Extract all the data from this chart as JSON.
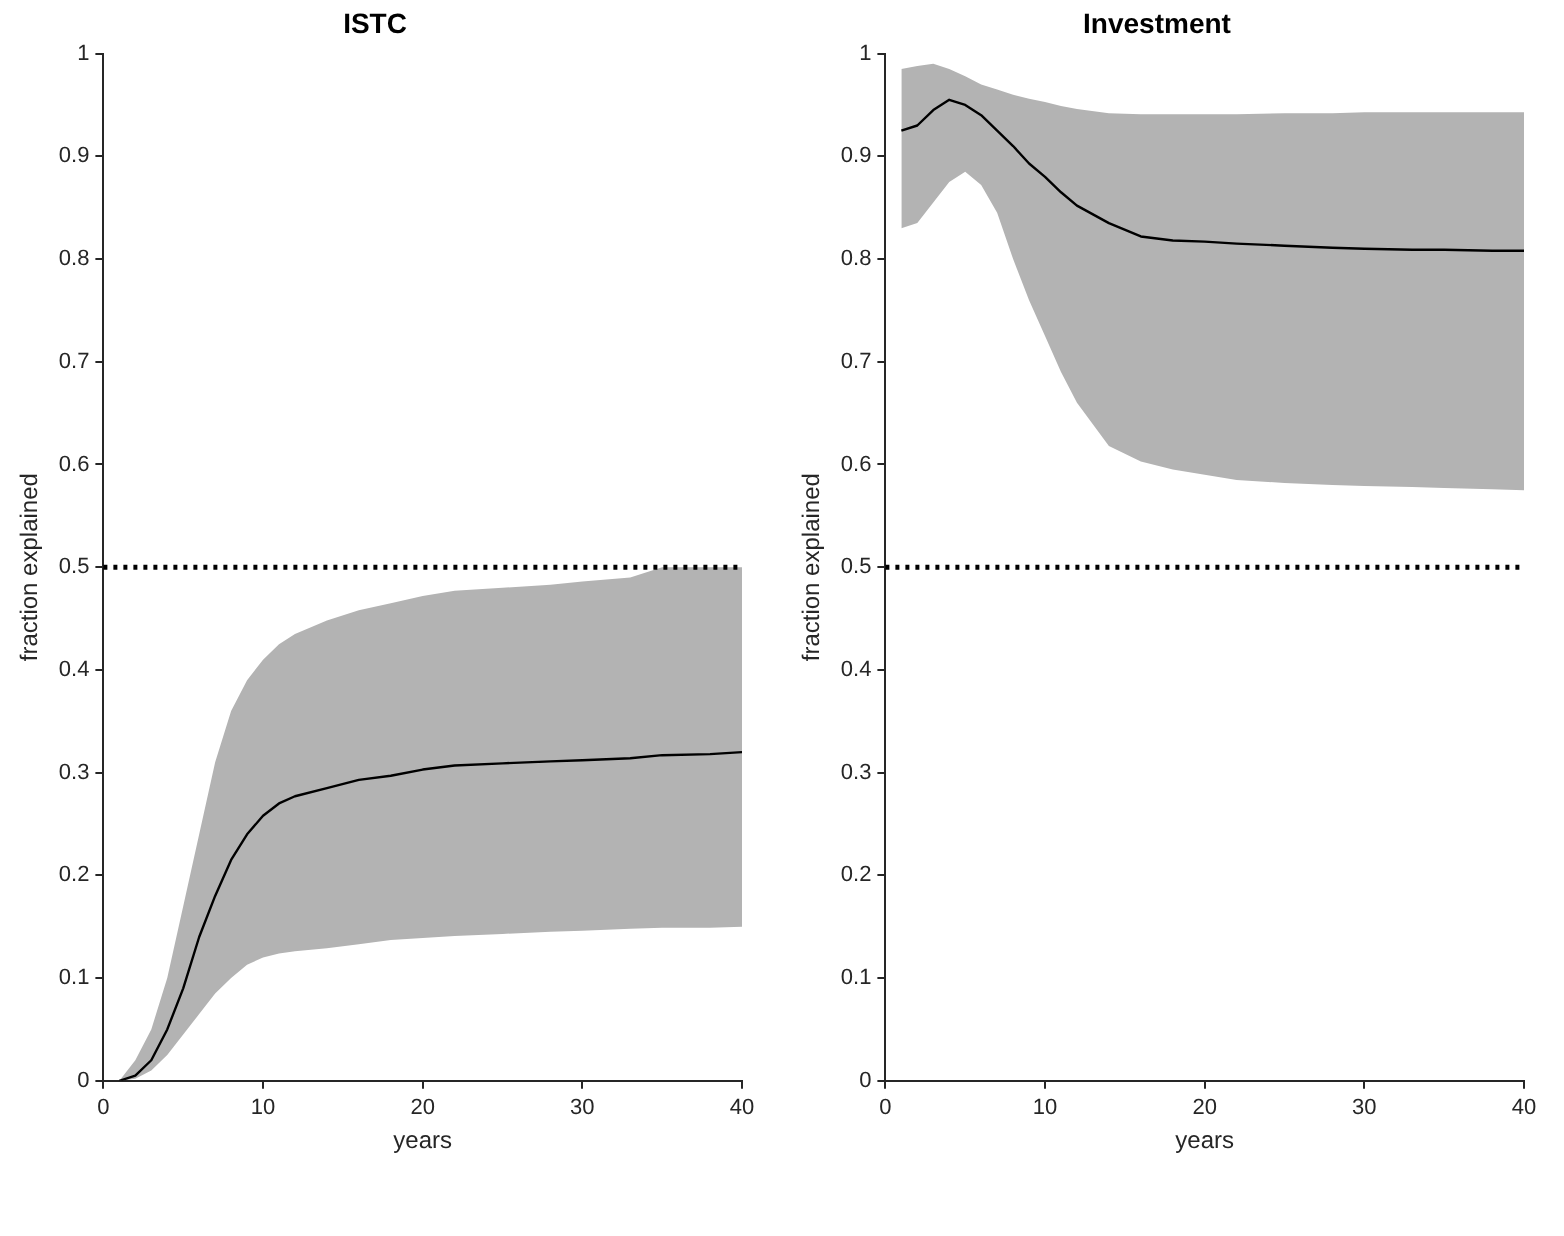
{
  "chart_data": [
    {
      "type": "line",
      "title": "ISTC",
      "xlabel": "years",
      "ylabel": "fraction explained",
      "x": [
        1,
        2,
        3,
        4,
        5,
        6,
        7,
        8,
        9,
        10,
        11,
        12,
        14,
        16,
        18,
        20,
        22,
        25,
        28,
        30,
        33,
        35,
        38,
        40
      ],
      "xlim": [
        0,
        40
      ],
      "xticks": [
        0,
        10,
        20,
        30,
        40
      ],
      "ylim": [
        0,
        1
      ],
      "yticks": [
        0,
        0.1,
        0.2,
        0.3,
        0.4,
        0.5,
        0.6,
        0.7,
        0.8,
        0.9,
        1
      ],
      "legend": false,
      "marker": "none",
      "line_style": "solid",
      "series": [
        {
          "color": "#000000",
          "values": [
            0,
            0.005,
            0.02,
            0.05,
            0.09,
            0.14,
            0.18,
            0.215,
            0.24,
            0.258,
            0.27,
            0.277,
            0.285,
            0.293,
            0.297,
            0.303,
            0.307,
            0.309,
            0.311,
            0.312,
            0.314,
            0.317,
            0.318,
            0.32
          ],
          "lower": [
            0,
            0.002,
            0.01,
            0.025,
            0.045,
            0.065,
            0.085,
            0.1,
            0.113,
            0.12,
            0.124,
            0.126,
            0.129,
            0.133,
            0.137,
            0.139,
            0.141,
            0.143,
            0.145,
            0.146,
            0.148,
            0.149,
            0.149,
            0.15
          ],
          "upper": [
            0,
            0.02,
            0.05,
            0.1,
            0.17,
            0.24,
            0.31,
            0.36,
            0.39,
            0.41,
            0.425,
            0.435,
            0.448,
            0.458,
            0.465,
            0.472,
            0.477,
            0.48,
            0.483,
            0.486,
            0.49,
            0.5,
            0.5,
            0.5
          ]
        }
      ],
      "ref_lines": [
        {
          "axis": "y",
          "value": 0.5,
          "color": "#000000",
          "line_style": "dotted"
        }
      ]
    },
    {
      "type": "line",
      "title": "Investment",
      "xlabel": "years",
      "ylabel": "fraction explained",
      "x": [
        1,
        2,
        3,
        4,
        5,
        6,
        7,
        8,
        9,
        10,
        11,
        12,
        14,
        16,
        18,
        20,
        22,
        25,
        28,
        30,
        33,
        35,
        38,
        40
      ],
      "xlim": [
        0,
        40
      ],
      "xticks": [
        0,
        10,
        20,
        30,
        40
      ],
      "ylim": [
        0,
        1
      ],
      "yticks": [
        0,
        0.1,
        0.2,
        0.3,
        0.4,
        0.5,
        0.6,
        0.7,
        0.8,
        0.9,
        1
      ],
      "legend": false,
      "marker": "none",
      "line_style": "solid",
      "series": [
        {
          "color": "#000000",
          "values": [
            0.925,
            0.93,
            0.945,
            0.955,
            0.95,
            0.94,
            0.925,
            0.91,
            0.893,
            0.88,
            0.865,
            0.852,
            0.835,
            0.822,
            0.818,
            0.817,
            0.815,
            0.813,
            0.811,
            0.81,
            0.809,
            0.809,
            0.808,
            0.808
          ],
          "lower": [
            0.83,
            0.835,
            0.855,
            0.875,
            0.885,
            0.872,
            0.845,
            0.8,
            0.76,
            0.725,
            0.69,
            0.66,
            0.618,
            0.603,
            0.595,
            0.59,
            0.585,
            0.582,
            0.58,
            0.579,
            0.578,
            0.577,
            0.576,
            0.575
          ],
          "upper": [
            0.985,
            0.988,
            0.99,
            0.985,
            0.978,
            0.97,
            0.965,
            0.96,
            0.956,
            0.953,
            0.949,
            0.946,
            0.942,
            0.941,
            0.941,
            0.941,
            0.941,
            0.942,
            0.942,
            0.943,
            0.943,
            0.943,
            0.943,
            0.943
          ]
        }
      ],
      "ref_lines": [
        {
          "axis": "y",
          "value": 0.5,
          "color": "#000000",
          "line_style": "dotted"
        }
      ]
    }
  ]
}
